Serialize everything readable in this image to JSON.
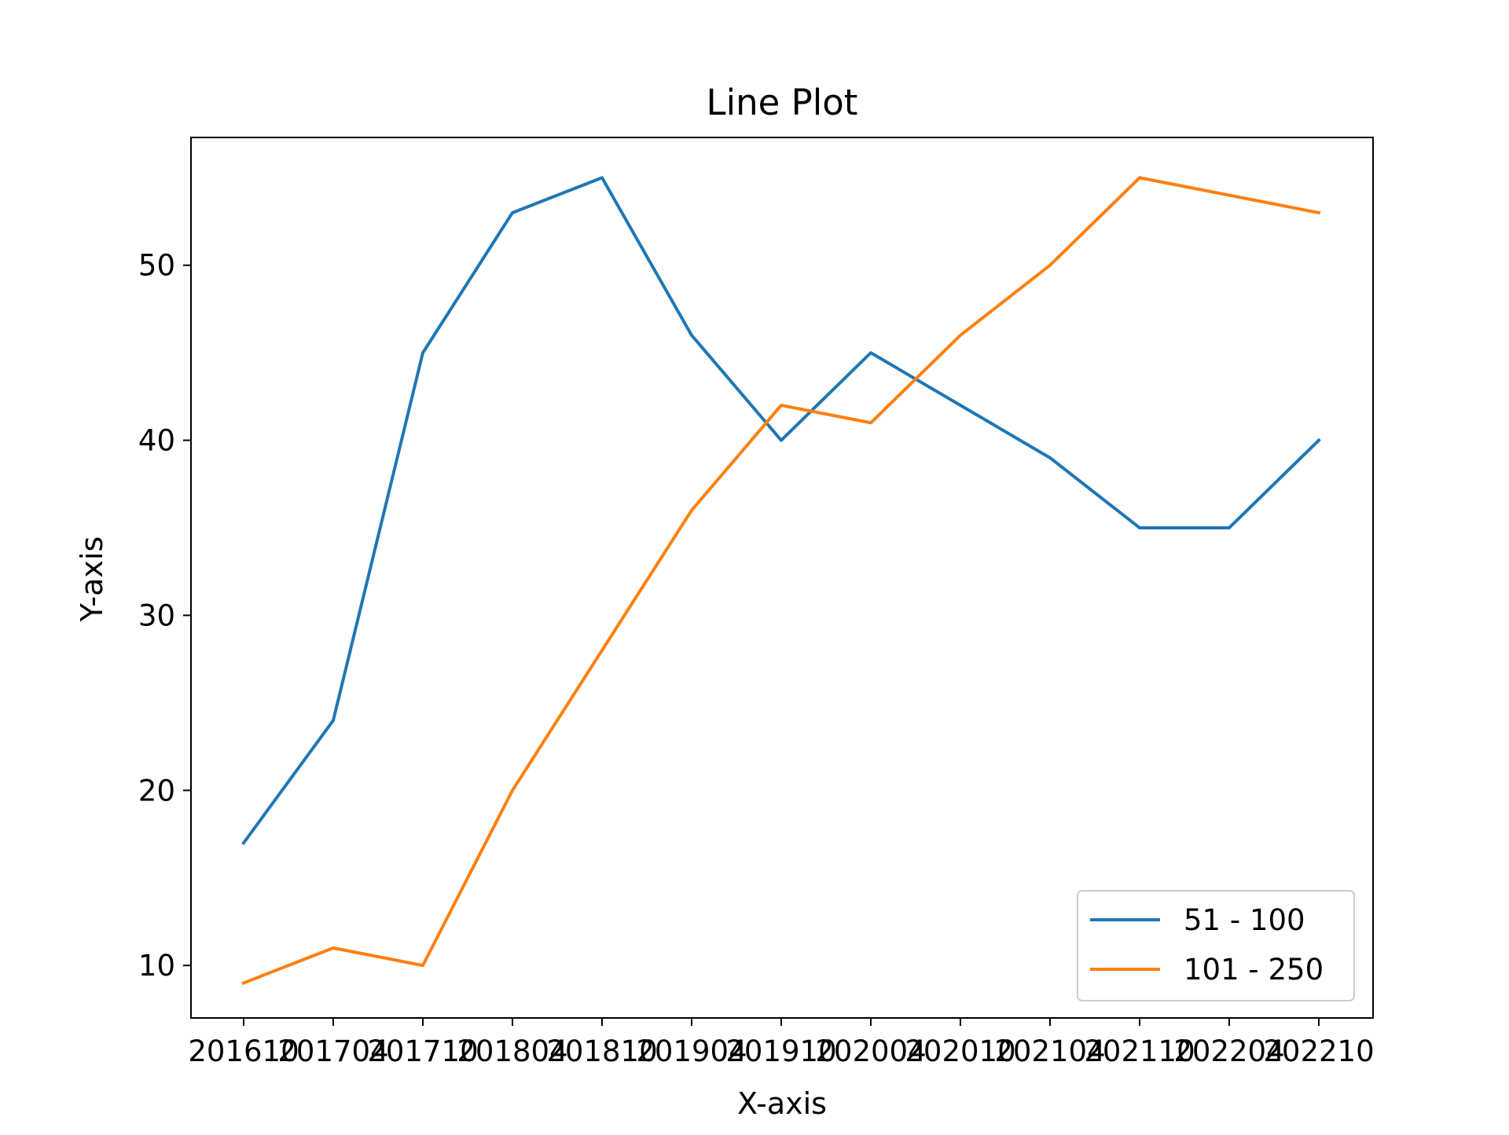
{
  "chart_data": {
    "type": "line",
    "title": "Line Plot",
    "xlabel": "X-axis",
    "ylabel": "Y-axis",
    "categories": [
      "201610",
      "201704",
      "201710",
      "201804",
      "201810",
      "201904",
      "201910",
      "202004",
      "202010",
      "202104",
      "202110",
      "202204",
      "202210"
    ],
    "series": [
      {
        "name": "51 - 100",
        "color": "#1f77b4",
        "values": [
          17,
          24,
          45,
          53,
          55,
          46,
          40,
          45,
          42,
          39,
          35,
          35,
          40
        ]
      },
      {
        "name": "101 - 250",
        "color": "#ff7f0e",
        "values": [
          9,
          11,
          10,
          20,
          28,
          36,
          42,
          41,
          46,
          50,
          55,
          54,
          53
        ]
      }
    ],
    "ylim": [
      7,
      57.3
    ],
    "yticks": [
      10,
      20,
      30,
      40,
      50
    ],
    "grid": false,
    "legend_position": "lower right"
  }
}
